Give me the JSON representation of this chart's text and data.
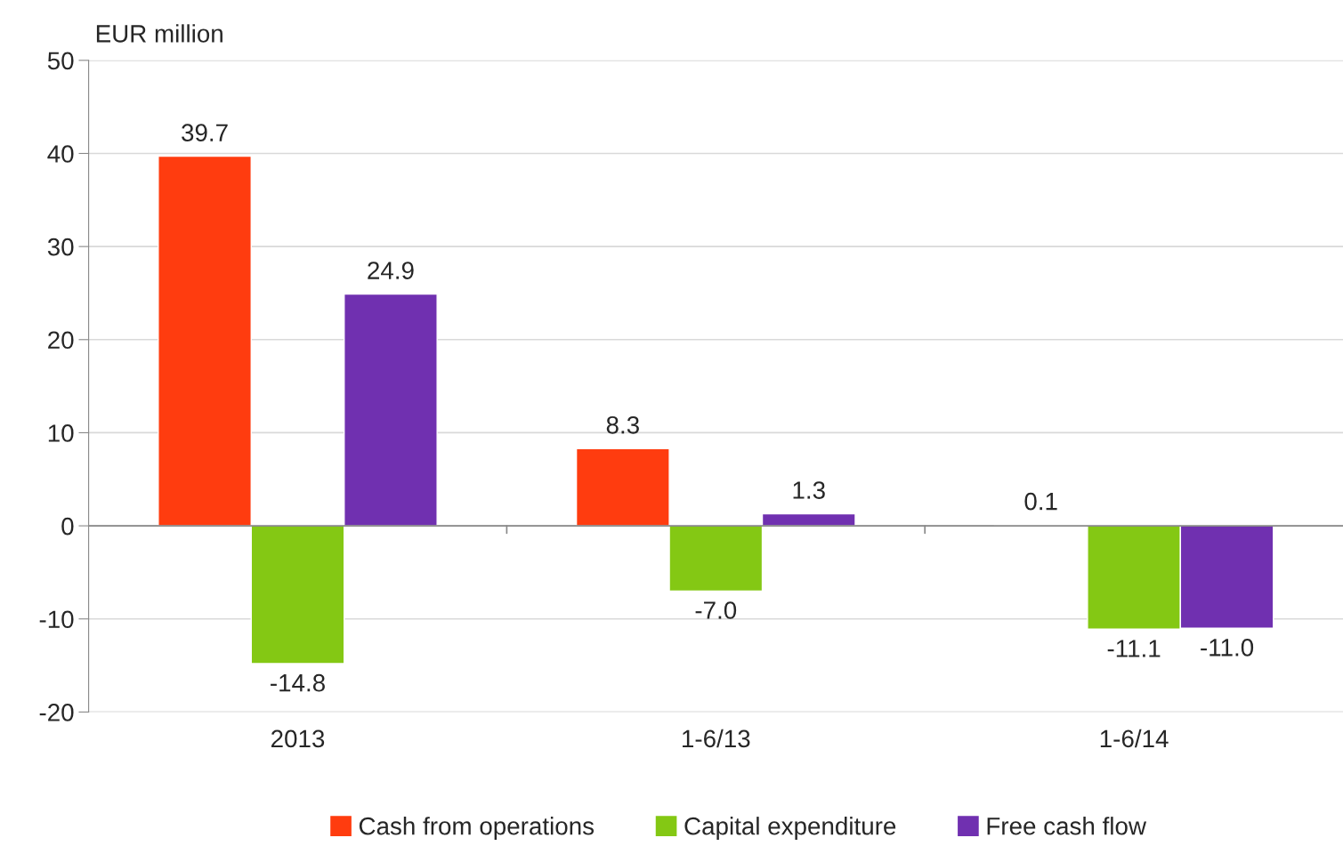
{
  "chart_data": {
    "type": "bar",
    "ylabel": "EUR million",
    "categories": [
      "2013",
      "1-6/13",
      "1-6/14"
    ],
    "series": [
      {
        "name": "Cash from operations",
        "color": "#ff3c0f",
        "values": [
          39.7,
          8.3,
          0.1
        ],
        "value_labels": [
          "39.7",
          "8.3",
          "0.1"
        ]
      },
      {
        "name": "Capital expenditure",
        "color": "#84c814",
        "values": [
          -14.8,
          -7.0,
          -11.1
        ],
        "value_labels": [
          "-14.8",
          "-7.0",
          "-11.1"
        ]
      },
      {
        "name": "Free cash flow",
        "color": "#7030b0",
        "values": [
          24.9,
          1.3,
          -11.0
        ],
        "value_labels": [
          "24.9",
          "1.3",
          "-11.0"
        ]
      }
    ],
    "ylim": [
      -20,
      50
    ],
    "yticks": [
      -20,
      -10,
      0,
      10,
      20,
      30,
      40,
      50
    ],
    "grid": "y",
    "legend": "bottom"
  }
}
